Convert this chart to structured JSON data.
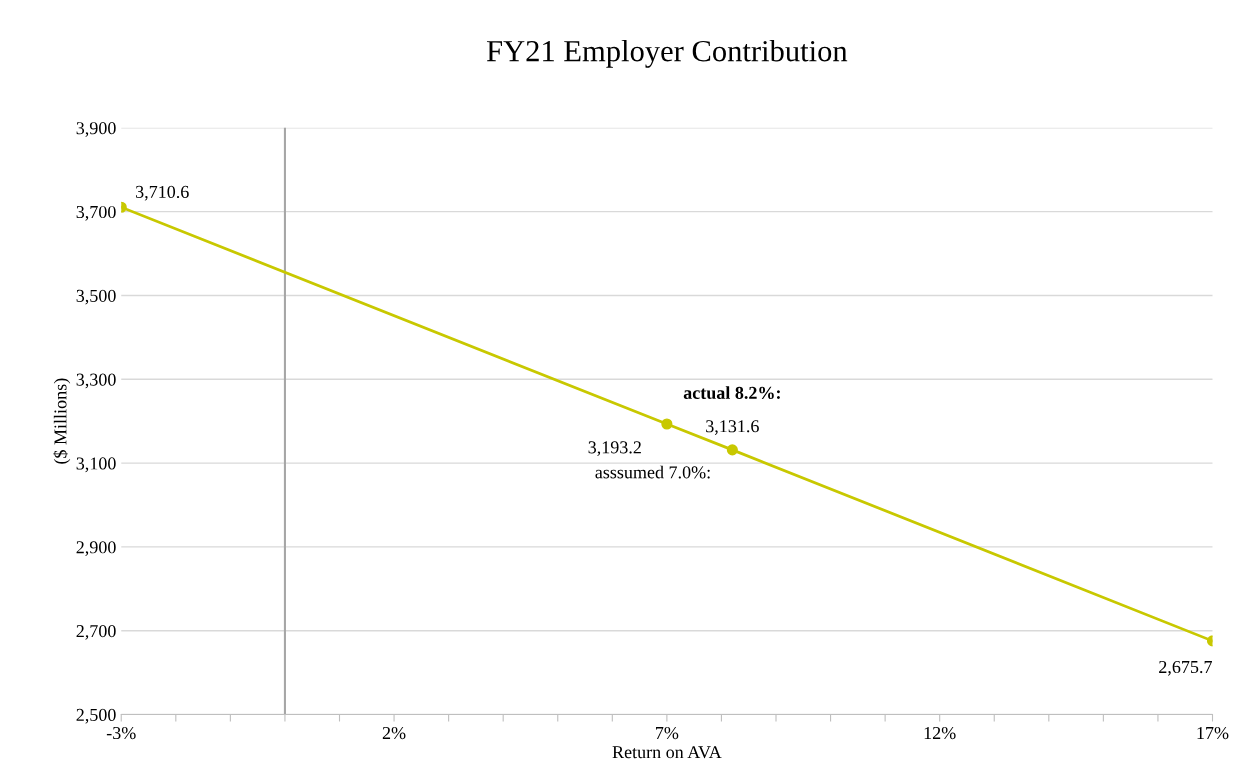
{
  "chart_data": {
    "type": "line",
    "title": "FY21 Employer Contribution",
    "xlabel": "Return on AVA",
    "ylabel": "($ Millions)",
    "x": [
      -3,
      7,
      8.2,
      17
    ],
    "series": [
      {
        "color": "#c8c800",
        "values": [
          3710.6,
          3193.2,
          3131.6,
          2675.7
        ]
      }
    ],
    "xlim": [
      -3,
      17
    ],
    "xticks": [
      {
        "value": -3,
        "label": "-3%"
      },
      {
        "value": -2,
        "label": null
      },
      {
        "value": -1,
        "label": null
      },
      {
        "value": 0,
        "label": null
      },
      {
        "value": 1,
        "label": null
      },
      {
        "value": 2,
        "label": "2%"
      },
      {
        "value": 3,
        "label": null
      },
      {
        "value": 4,
        "label": null
      },
      {
        "value": 5,
        "label": null
      },
      {
        "value": 6,
        "label": null
      },
      {
        "value": 7,
        "label": "7%"
      },
      {
        "value": 8,
        "label": null
      },
      {
        "value": 9,
        "label": null
      },
      {
        "value": 10,
        "label": null
      },
      {
        "value": 11,
        "label": null
      },
      {
        "value": 12,
        "label": "12%"
      },
      {
        "value": 13,
        "label": null
      },
      {
        "value": 14,
        "label": null
      },
      {
        "value": 15,
        "label": null
      },
      {
        "value": 16,
        "label": null
      },
      {
        "value": 17,
        "label": "17%"
      }
    ],
    "ylim": [
      2500,
      3900
    ],
    "yticks": [
      {
        "value": 2500,
        "label": "2,500"
      },
      {
        "value": 2700,
        "label": "2,700"
      },
      {
        "value": 2900,
        "label": "2,900"
      },
      {
        "value": 3100,
        "label": "3,100"
      },
      {
        "value": 3300,
        "label": "3,300"
      },
      {
        "value": 3500,
        "label": "3,500"
      },
      {
        "value": 3700,
        "label": "3,700"
      },
      {
        "value": 3900,
        "label": "3,900"
      }
    ],
    "value_labels": [
      "3,710.6",
      "3,193.2",
      "3,131.6",
      "2,675.7"
    ],
    "annotations": [
      {
        "text": "actual 8.2%:",
        "x": 8.2,
        "y": 3131.6
      },
      {
        "text": "asssumed 7.0%:",
        "x": 7,
        "y": 3193.2
      }
    ],
    "ref_lines": [
      {
        "axis": "x",
        "value": 0,
        "color": "#a6a6a6"
      }
    ],
    "grid": "y",
    "marker": "circle",
    "line_style": "solid",
    "legend": false
  }
}
